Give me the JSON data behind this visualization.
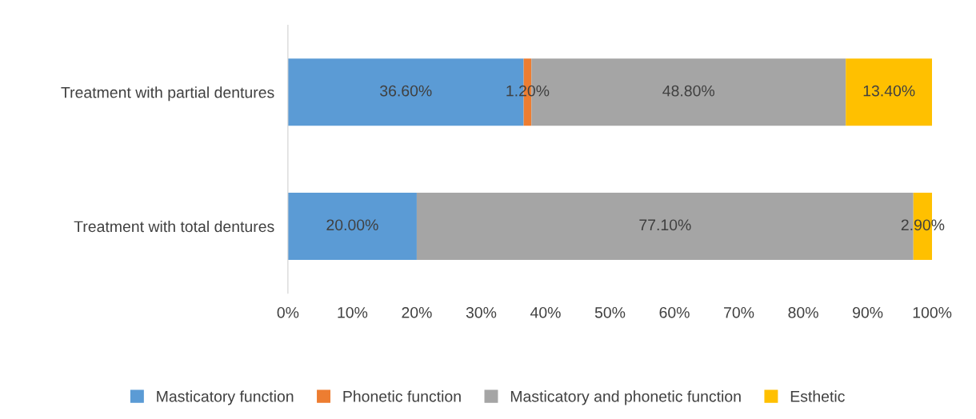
{
  "chart_data": {
    "type": "bar",
    "orientation": "horizontal",
    "stacked": true,
    "categories": [
      "Treatment with partial dentures",
      "Treatment with total dentures"
    ],
    "series": [
      {
        "name": "Masticatory function",
        "color": "#5b9bd5",
        "values": [
          36.6,
          20.0
        ],
        "value_labels": [
          "36.60%",
          "20.00%"
        ]
      },
      {
        "name": "Phonetic function",
        "color": "#ed7d31",
        "values": [
          1.2,
          null
        ],
        "value_labels": [
          "1.20%",
          null
        ]
      },
      {
        "name": "Masticatory and phonetic function",
        "color": "#a5a5a5",
        "values": [
          48.8,
          77.1
        ],
        "value_labels": [
          "48.80%",
          "77.10%"
        ]
      },
      {
        "name": "Esthetic",
        "color": "#ffc000",
        "values": [
          13.4,
          2.9
        ],
        "value_labels": [
          "13.40%",
          "2.90%"
        ]
      }
    ],
    "xlim": [
      0,
      100
    ],
    "xticks": [
      {
        "value": 0,
        "label": "0%"
      },
      {
        "value": 10,
        "label": "10%"
      },
      {
        "value": 20,
        "label": "20%"
      },
      {
        "value": 30,
        "label": "30%"
      },
      {
        "value": 40,
        "label": "40%"
      },
      {
        "value": 50,
        "label": "50%"
      },
      {
        "value": 60,
        "label": "60%"
      },
      {
        "value": 70,
        "label": "70%"
      },
      {
        "value": 80,
        "label": "80%"
      },
      {
        "value": 90,
        "label": "90%"
      },
      {
        "value": 100,
        "label": "100%"
      }
    ],
    "grid": false,
    "legend": "bottom"
  }
}
